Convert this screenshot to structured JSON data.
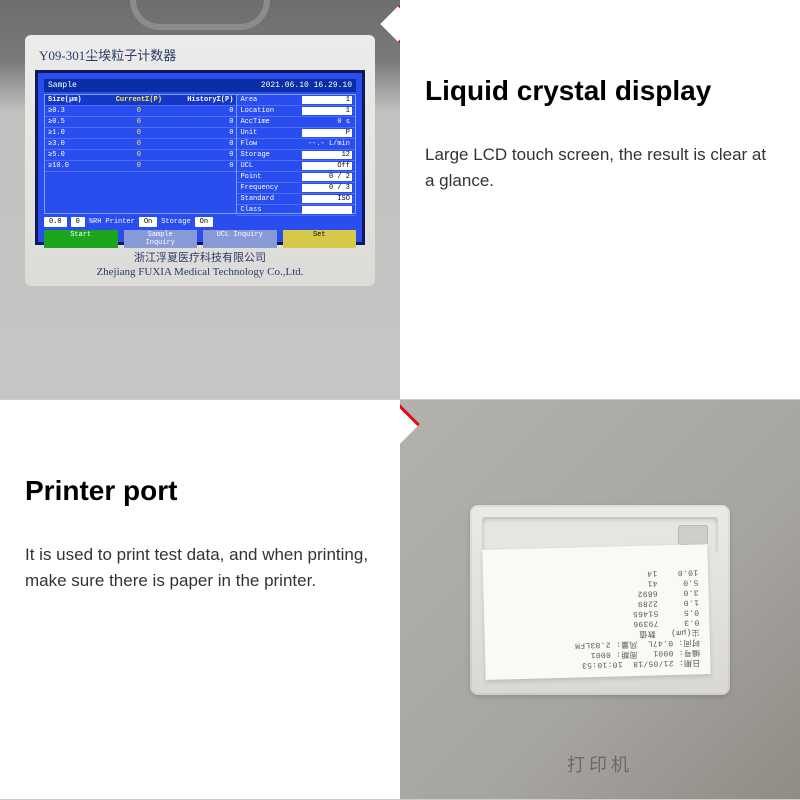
{
  "colors": {
    "accent": "#e30613",
    "lcd_bg": "#2a4df0",
    "lcd_border": "#0d1a57"
  },
  "top": {
    "title": "Liquid crystal display",
    "desc": "Large LCD touch screen, the result is clear at a glance.",
    "model": "Y09-301尘埃粒子计数器",
    "company_cn": "浙江浮夏医疗科技有限公司",
    "company_en": "Zhejiang FUXIA Medical Technology Co.,Ltd.",
    "lcd": {
      "header_left": "Sample",
      "header_right": "2021.06.10 16.29.10",
      "left_headers": [
        "Size(μm)",
        "CurrentΣ(P)",
        "HistoryΣ(P)"
      ],
      "rows": [
        {
          "size": "≥0.3",
          "cur": "0",
          "his": "0"
        },
        {
          "size": "≥0.5",
          "cur": "0",
          "his": "0"
        },
        {
          "size": "≥1.0",
          "cur": "0",
          "his": "0"
        },
        {
          "size": "≥3.0",
          "cur": "0",
          "his": "0"
        },
        {
          "size": "≥5.0",
          "cur": "0",
          "his": "0"
        },
        {
          "size": "≥10.0",
          "cur": "0",
          "his": "0"
        }
      ],
      "right_rows": [
        {
          "k": "Area",
          "v": "1",
          "box": true
        },
        {
          "k": "Location",
          "v": "1",
          "box": true
        },
        {
          "k": "AccTime",
          "v": "0 s",
          "box": false
        },
        {
          "k": "Unit",
          "v": "P",
          "box": true
        },
        {
          "k": "Flow",
          "v": "--.-  L/min",
          "box": false
        },
        {
          "k": "Storage",
          "v": "12",
          "box": true
        },
        {
          "k": "UCL",
          "v": "Off",
          "box": true
        },
        {
          "k": "Point",
          "v": "0 / 2",
          "box": true
        },
        {
          "k": "Frequency",
          "v": "0 / 3",
          "box": true
        },
        {
          "k": "Standard",
          "v": "ISO",
          "box": true
        },
        {
          "k": "Class",
          "v": "",
          "box": true
        }
      ],
      "footer1": {
        "pill1": "0.0",
        "pill2": "0",
        "rh": "%RH",
        "printer": "Printer",
        "printer_v": "On",
        "storage": "Storage",
        "storage_v": "On"
      },
      "footer2": {
        "start": "Start",
        "sample": "Sample Inquiry",
        "ucl": "UCL Inquiry",
        "set": "Set"
      }
    }
  },
  "bottom": {
    "title": "Printer port",
    "desc": "It is used to print test data, and when printing, make sure there is paper in the printer.",
    "printer_label": "打印机",
    "receipt_lines": [
      "日期: 21/05/18  10:10:53",
      "编号: 0001   周期: 0001",
      "时间: 0.47L  风量: 2.83LFM",
      "尘(μm)   数值",
      "0.3     79396",
      "0.5     51465",
      "1.0     2289",
      "3.0     6892",
      "5.0     41",
      "10.0    14"
    ]
  }
}
